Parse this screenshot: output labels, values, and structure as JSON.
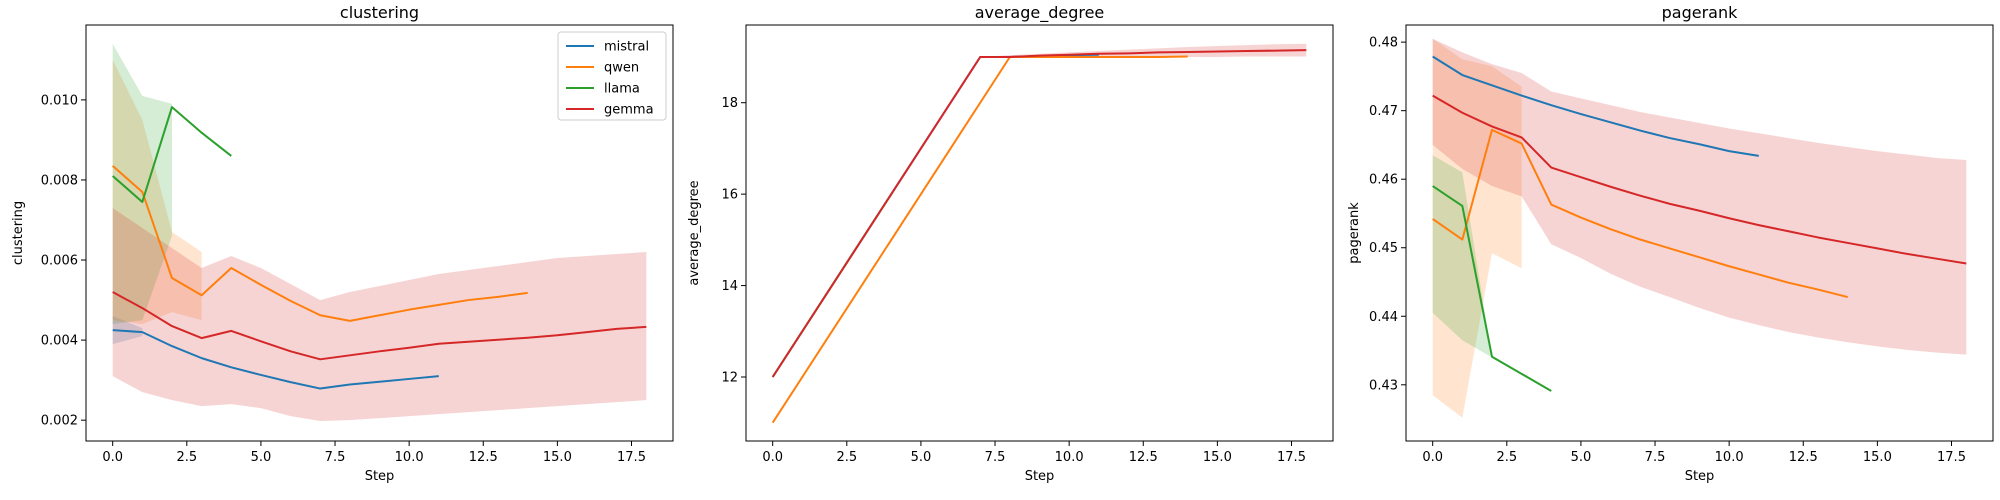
{
  "colors": {
    "mistral": "#1f77b4",
    "qwen": "#ff7f0e",
    "llama": "#2ca02c",
    "gemma": "#d62728"
  },
  "chart_data": [
    {
      "type": "line",
      "title": "clustering",
      "xlabel": "Step",
      "ylabel": "clustering",
      "xlim": [
        -0.9,
        18.9
      ],
      "ylim": [
        0.00148,
        0.01187
      ],
      "xticks": [
        0.0,
        2.5,
        5.0,
        7.5,
        10.0,
        12.5,
        15.0,
        17.5
      ],
      "xtick_labels": [
        "0.0",
        "2.5",
        "5.0",
        "7.5",
        "10.0",
        "12.5",
        "15.0",
        "17.5"
      ],
      "yticks": [
        0.002,
        0.004,
        0.006,
        0.008,
        0.01
      ],
      "ytick_labels": [
        "0.002",
        "0.004",
        "0.006",
        "0.008",
        "0.010"
      ],
      "legend": {
        "position": "top-right",
        "entries": [
          "mistral",
          "qwen",
          "llama",
          "gemma"
        ]
      },
      "series": [
        {
          "name": "mistral",
          "x": [
            0,
            1,
            2,
            3,
            4,
            5,
            6,
            7,
            8,
            9,
            10,
            11
          ],
          "y": [
            0.00425,
            0.0042,
            0.00385,
            0.00355,
            0.00332,
            0.00313,
            0.00295,
            0.00279,
            0.00289,
            0.00296,
            0.00303,
            0.0031
          ],
          "band": {
            "x": [
              0,
              1
            ],
            "lower": [
              0.0039,
              0.0041
            ],
            "upper": [
              0.0046,
              0.0043
            ]
          }
        },
        {
          "name": "qwen",
          "x": [
            0,
            1,
            2,
            3,
            4,
            5,
            6,
            7,
            8,
            9,
            10,
            11,
            12,
            13,
            14
          ],
          "y": [
            0.00835,
            0.0077,
            0.00555,
            0.00512,
            0.0058,
            0.00538,
            0.00498,
            0.00462,
            0.00448,
            0.00462,
            0.00476,
            0.00488,
            0.005,
            0.00508,
            0.00518
          ],
          "band": {
            "x": [
              0,
              1,
              2,
              3
            ],
            "lower": [
              0.0045,
              0.0044,
              0.0047,
              0.0045
            ],
            "upper": [
              0.011,
              0.0095,
              0.0067,
              0.0062
            ]
          }
        },
        {
          "name": "llama",
          "x": [
            0,
            1,
            2,
            3,
            4
          ],
          "y": [
            0.0081,
            0.00745,
            0.00982,
            0.00918,
            0.0086
          ],
          "band": {
            "x": [
              0,
              1,
              2
            ],
            "lower": [
              0.0044,
              0.0045,
              0.0066
            ],
            "upper": [
              0.0114,
              0.0101,
              0.0099
            ]
          }
        },
        {
          "name": "gemma",
          "x": [
            0,
            1,
            2,
            3,
            4,
            5,
            6,
            7,
            8,
            9,
            10,
            11,
            12,
            13,
            14,
            15,
            16,
            17,
            18
          ],
          "y": [
            0.0052,
            0.0048,
            0.00435,
            0.00405,
            0.00423,
            0.00397,
            0.00372,
            0.00352,
            0.00362,
            0.00372,
            0.00381,
            0.00391,
            0.00396,
            0.00401,
            0.00406,
            0.00412,
            0.0042,
            0.00428,
            0.00433
          ],
          "band": {
            "x": [
              0,
              1,
              2,
              3,
              4,
              5,
              6,
              7,
              8,
              9,
              10,
              11,
              12,
              13,
              14,
              15,
              16,
              17,
              18
            ],
            "lower": [
              0.0031,
              0.0027,
              0.0025,
              0.00235,
              0.0024,
              0.0023,
              0.0021,
              0.00198,
              0.002,
              0.00205,
              0.0021,
              0.00215,
              0.0022,
              0.00225,
              0.0023,
              0.00235,
              0.0024,
              0.00245,
              0.0025
            ],
            "upper": [
              0.0073,
              0.0068,
              0.0063,
              0.0058,
              0.0061,
              0.0058,
              0.0054,
              0.005,
              0.0052,
              0.00535,
              0.0055,
              0.00565,
              0.00575,
              0.00585,
              0.00595,
              0.00605,
              0.0061,
              0.00615,
              0.0062
            ]
          }
        }
      ]
    },
    {
      "type": "line",
      "title": "average_degree",
      "xlabel": "Step",
      "ylabel": "average_degree",
      "xlim": [
        -0.9,
        18.9
      ],
      "ylim": [
        10.6,
        19.7
      ],
      "xticks": [
        0.0,
        2.5,
        5.0,
        7.5,
        10.0,
        12.5,
        15.0,
        17.5
      ],
      "xtick_labels": [
        "0.0",
        "2.5",
        "5.0",
        "7.5",
        "10.0",
        "12.5",
        "15.0",
        "17.5"
      ],
      "yticks": [
        12,
        14,
        16,
        18
      ],
      "ytick_labels": [
        "12",
        "14",
        "16",
        "18"
      ],
      "series": [
        {
          "name": "mistral",
          "x": [
            0,
            7,
            8,
            9,
            10,
            11
          ],
          "y": [
            12,
            19,
            19,
            19.02,
            19.04,
            19.05
          ]
        },
        {
          "name": "qwen",
          "x": [
            0,
            8,
            9,
            10,
            11,
            12,
            13,
            14
          ],
          "y": [
            11,
            19,
            19,
            19,
            19,
            19,
            19,
            19.01
          ]
        },
        {
          "name": "llama",
          "x": [
            0,
            4
          ],
          "y": [
            12,
            16
          ]
        },
        {
          "name": "gemma",
          "x": [
            0,
            7,
            8,
            9,
            10,
            11,
            12,
            13,
            14,
            15,
            16,
            17,
            18
          ],
          "y": [
            12,
            19,
            19,
            19.03,
            19.05,
            19.07,
            19.08,
            19.1,
            19.11,
            19.12,
            19.13,
            19.14,
            19.15
          ],
          "band": {
            "x": [
              0,
              7,
              8,
              9,
              10,
              11,
              12,
              13,
              14,
              15,
              16,
              17,
              18
            ],
            "lower": [
              12,
              19,
              18.98,
              18.98,
              18.98,
              18.99,
              18.99,
              19.0,
              19.0,
              19.0,
              19.01,
              19.01,
              19.01
            ],
            "upper": [
              12,
              19,
              19.04,
              19.07,
              19.1,
              19.13,
              19.16,
              19.19,
              19.22,
              19.24,
              19.26,
              19.28,
              19.29
            ]
          }
        }
      ]
    },
    {
      "type": "line",
      "title": "pagerank",
      "xlabel": "Step",
      "ylabel": "pagerank",
      "xlim": [
        -0.9,
        18.9
      ],
      "ylim": [
        0.4218,
        0.4825
      ],
      "xticks": [
        0.0,
        2.5,
        5.0,
        7.5,
        10.0,
        12.5,
        15.0,
        17.5
      ],
      "xtick_labels": [
        "0.0",
        "2.5",
        "5.0",
        "7.5",
        "10.0",
        "12.5",
        "15.0",
        "17.5"
      ],
      "yticks": [
        0.43,
        0.44,
        0.45,
        0.46,
        0.47,
        0.48
      ],
      "ytick_labels": [
        "0.43",
        "0.44",
        "0.45",
        "0.46",
        "0.47",
        "0.48"
      ],
      "series": [
        {
          "name": "mistral",
          "x": [
            0,
            1,
            2,
            3,
            4,
            5,
            6,
            7,
            8,
            9,
            10,
            11
          ],
          "y": [
            0.4779,
            0.4752,
            0.4737,
            0.4722,
            0.4708,
            0.4695,
            0.4683,
            0.4671,
            0.466,
            0.4651,
            0.4641,
            0.4634
          ]
        },
        {
          "name": "qwen",
          "x": [
            0,
            1,
            2,
            3,
            4,
            5,
            6,
            7,
            8,
            9,
            10,
            11,
            12,
            13,
            14
          ],
          "y": [
            0.4542,
            0.4512,
            0.4672,
            0.4652,
            0.4563,
            0.4544,
            0.4527,
            0.4512,
            0.4499,
            0.4486,
            0.4473,
            0.4461,
            0.4449,
            0.4439,
            0.4428
          ],
          "band": {
            "x": [
              0,
              1,
              2,
              3
            ],
            "lower": [
              0.4285,
              0.4252,
              0.4492,
              0.447
            ],
            "upper": [
              0.4805,
              0.4775,
              0.4765,
              0.4735
            ]
          }
        },
        {
          "name": "llama",
          "x": [
            0,
            1,
            2,
            3,
            4
          ],
          "y": [
            0.459,
            0.4561,
            0.4341,
            0.4316,
            0.4291
          ],
          "band": {
            "x": [
              0,
              1,
              2
            ],
            "lower": [
              0.4405,
              0.4365,
              0.434
            ],
            "upper": [
              0.4635,
              0.461,
              0.434
            ]
          }
        },
        {
          "name": "gemma",
          "x": [
            0,
            1,
            2,
            3,
            4,
            5,
            6,
            7,
            8,
            9,
            10,
            11,
            12,
            13,
            14,
            15,
            16,
            17,
            18
          ],
          "y": [
            0.4722,
            0.4697,
            0.4677,
            0.4661,
            0.4617,
            0.4603,
            0.4589,
            0.4576,
            0.4564,
            0.4554,
            0.4543,
            0.4533,
            0.4524,
            0.4515,
            0.4507,
            0.4499,
            0.4491,
            0.4484,
            0.4477
          ],
          "band": {
            "x": [
              0,
              1,
              2,
              3,
              4,
              5,
              6,
              7,
              8,
              9,
              10,
              11,
              12,
              13,
              14,
              15,
              16,
              17,
              18
            ],
            "lower": [
              0.465,
              0.4615,
              0.459,
              0.4575,
              0.4505,
              0.4485,
              0.4462,
              0.4443,
              0.4428,
              0.4412,
              0.4398,
              0.4387,
              0.4377,
              0.4369,
              0.4362,
              0.4356,
              0.4351,
              0.4347,
              0.4344
            ],
            "upper": [
              0.4805,
              0.4785,
              0.4768,
              0.4755,
              0.4728,
              0.4718,
              0.4708,
              0.4698,
              0.469,
              0.4682,
              0.4674,
              0.4667,
              0.466,
              0.4653,
              0.4647,
              0.4641,
              0.4636,
              0.4631,
              0.4628
            ]
          }
        }
      ]
    }
  ]
}
